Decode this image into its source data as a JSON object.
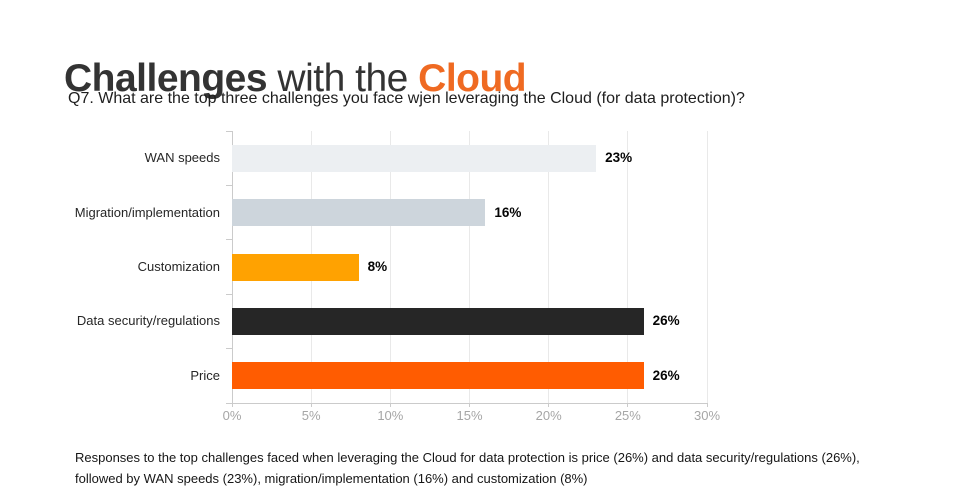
{
  "page": {
    "title_part1": "Challenges",
    "title_part2": " with the ",
    "title_part3": "Cloud",
    "subtitle": "Q7. What are the top three challenges you face wjen leveraging the Cloud (for data protection)?",
    "footer": "Responses to the top challenges faced when leveraging the Cloud for data protection is price (26%) and data security/regulations (26%), followed by WAN speeds (23%), migration/implementation (16%) and customization (8%)"
  },
  "colors": {
    "title_accent": "#EF6A22",
    "title_dark": "#333333",
    "gridline": "#E9E9E9",
    "axis_line": "#CBCBCB",
    "axis_text": "#A6A6A6"
  },
  "chart_data": {
    "type": "bar",
    "orientation": "horizontal",
    "title": "Challenges with the Cloud",
    "xlabel": "",
    "ylabel": "",
    "categories": [
      "WAN speeds",
      "Migration/implementation",
      "Customization",
      "Data security/regulations",
      "Price"
    ],
    "values": [
      23,
      16,
      8,
      26,
      26
    ],
    "value_labels": [
      "23%",
      "16%",
      "8%",
      "26%",
      "26%"
    ],
    "bar_colors": [
      "#ECEFF2",
      "#CDD5DC",
      "#FFA201",
      "#262626",
      "#FF5C01"
    ],
    "xlim": [
      0,
      30
    ],
    "x_tick_values": [
      0,
      5,
      10,
      15,
      20,
      25,
      30
    ],
    "x_tick_labels": [
      "0%",
      "5%",
      "10%",
      "15%",
      "20%",
      "25%",
      "30%"
    ],
    "grid": true,
    "legend": "none"
  }
}
